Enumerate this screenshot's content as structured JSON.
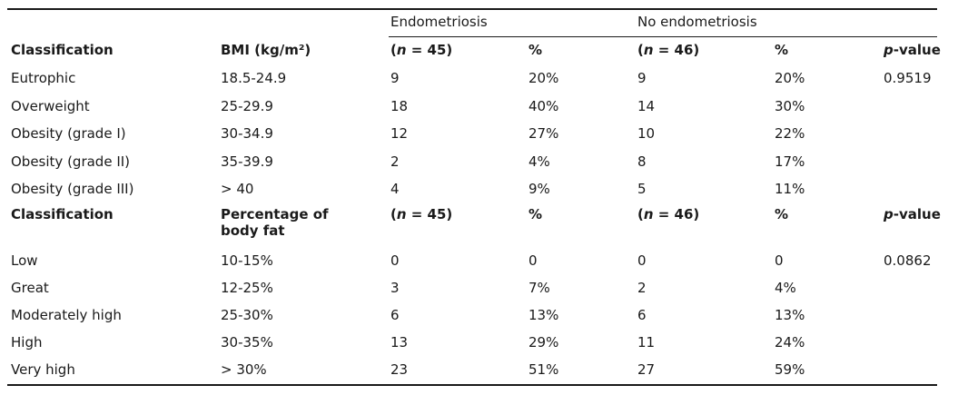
{
  "groups": {
    "endo": "Endometriosis",
    "no_endo": "No endometriosis"
  },
  "header1": {
    "classification": "Classification",
    "bmi": "BMI (kg/m²)",
    "n_endo": "(n = 45)",
    "pct_endo": "%",
    "n_no": "(n = 46)",
    "pct_no": "%",
    "pvalue": "p-value"
  },
  "bmi_rows": [
    {
      "label": "Eutrophic",
      "range": "18.5-24.9",
      "endo_n": "9",
      "endo_pct": "20%",
      "no_n": "9",
      "no_pct": "20%",
      "p": "0.9519"
    },
    {
      "label": "Overweight",
      "range": "25-29.9",
      "endo_n": "18",
      "endo_pct": "40%",
      "no_n": "14",
      "no_pct": "30%",
      "p": ""
    },
    {
      "label": "Obesity (grade I)",
      "range": "30-34.9",
      "endo_n": "12",
      "endo_pct": "27%",
      "no_n": "10",
      "no_pct": "22%",
      "p": ""
    },
    {
      "label": "Obesity (grade II)",
      "range": "35-39.9",
      "endo_n": "2",
      "endo_pct": "4%",
      "no_n": "8",
      "no_pct": "17%",
      "p": ""
    },
    {
      "label": "Obesity (grade III)",
      "range": "> 40",
      "endo_n": "4",
      "endo_pct": "9%",
      "no_n": "5",
      "no_pct": "11%",
      "p": ""
    }
  ],
  "header2": {
    "classification": "Classification",
    "fat": "Percentage of body fat",
    "n_endo": "(n = 45)",
    "pct_endo": "%",
    "n_no": "(n = 46)",
    "pct_no": "%",
    "pvalue": "p-value"
  },
  "fat_rows": [
    {
      "label": "Low",
      "range": "10-15%",
      "endo_n": "0",
      "endo_pct": "0",
      "no_n": "0",
      "no_pct": "0",
      "p": "0.0862"
    },
    {
      "label": "Great",
      "range": "12-25%",
      "endo_n": "3",
      "endo_pct": "7%",
      "no_n": "2",
      "no_pct": "4%",
      "p": ""
    },
    {
      "label": "Moderately high",
      "range": "25-30%",
      "endo_n": "6",
      "endo_pct": "13%",
      "no_n": "6",
      "no_pct": "13%",
      "p": ""
    },
    {
      "label": "High",
      "range": "30-35%",
      "endo_n": "13",
      "endo_pct": "29%",
      "no_n": "11",
      "no_pct": "24%",
      "p": ""
    },
    {
      "label": "Very high",
      "range": "> 30%",
      "endo_n": "23",
      "endo_pct": "51%",
      "no_n": "27",
      "no_pct": "59%",
      "p": ""
    }
  ]
}
